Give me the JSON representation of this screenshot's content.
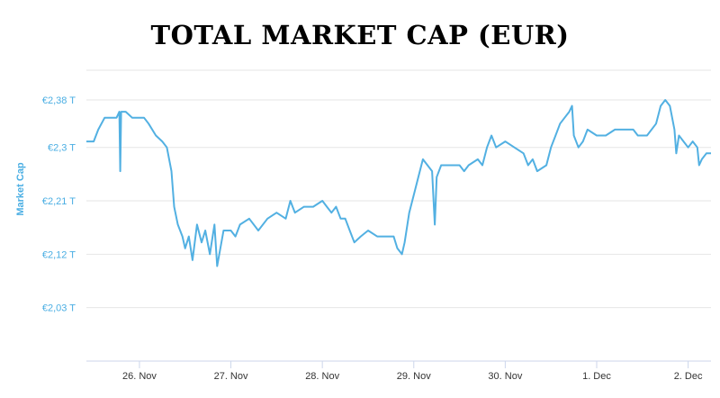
{
  "title": "TOTAL MARKET CAP (EUR)",
  "chart_data": {
    "type": "line",
    "title": "TOTAL MARKET CAP (EUR)",
    "ylabel": "Market Cap",
    "xlabel": "",
    "unit": "T EUR",
    "ylim": [
      1.94,
      2.43
    ],
    "grid": true,
    "line_color": "#52b0e2",
    "y_ticks": [
      {
        "value": 2.38,
        "label": "€2,38 T"
      },
      {
        "value": 2.3,
        "label": "€2,3 T"
      },
      {
        "value": 2.21,
        "label": "€2,21 T"
      },
      {
        "value": 2.12,
        "label": "€2,12 T"
      },
      {
        "value": 2.03,
        "label": "€2,03 T"
      }
    ],
    "x_ticks": [
      {
        "value": 26.0,
        "label": "26. Nov"
      },
      {
        "value": 27.0,
        "label": "27. Nov"
      },
      {
        "value": 28.0,
        "label": "28. Nov"
      },
      {
        "value": 29.0,
        "label": "29. Nov"
      },
      {
        "value": 30.0,
        "label": "30. Nov"
      },
      {
        "value": 31.0,
        "label": "1. Dec"
      },
      {
        "value": 32.0,
        "label": "2. Dec"
      }
    ],
    "xlim": [
      25.42,
      32.25
    ],
    "series": [
      {
        "values": [
          [
            25.42,
            2.31
          ],
          [
            25.5,
            2.31
          ],
          [
            25.55,
            2.33
          ],
          [
            25.62,
            2.35
          ],
          [
            25.7,
            2.35
          ],
          [
            25.75,
            2.35
          ],
          [
            25.78,
            2.36
          ],
          [
            25.79,
            2.26
          ],
          [
            25.8,
            2.36
          ],
          [
            25.85,
            2.36
          ],
          [
            25.92,
            2.35
          ],
          [
            25.98,
            2.35
          ],
          [
            26.05,
            2.35
          ],
          [
            26.1,
            2.34
          ],
          [
            26.18,
            2.32
          ],
          [
            26.25,
            2.31
          ],
          [
            26.3,
            2.3
          ],
          [
            26.35,
            2.26
          ],
          [
            26.38,
            2.2
          ],
          [
            26.42,
            2.17
          ],
          [
            26.47,
            2.15
          ],
          [
            26.5,
            2.13
          ],
          [
            26.54,
            2.15
          ],
          [
            26.58,
            2.11
          ],
          [
            26.63,
            2.17
          ],
          [
            26.68,
            2.14
          ],
          [
            26.72,
            2.16
          ],
          [
            26.77,
            2.12
          ],
          [
            26.82,
            2.17
          ],
          [
            26.85,
            2.1
          ],
          [
            26.92,
            2.16
          ],
          [
            27.0,
            2.16
          ],
          [
            27.05,
            2.15
          ],
          [
            27.1,
            2.17
          ],
          [
            27.2,
            2.18
          ],
          [
            27.3,
            2.16
          ],
          [
            27.4,
            2.18
          ],
          [
            27.5,
            2.19
          ],
          [
            27.6,
            2.18
          ],
          [
            27.65,
            2.21
          ],
          [
            27.7,
            2.19
          ],
          [
            27.8,
            2.2
          ],
          [
            27.9,
            2.2
          ],
          [
            28.0,
            2.21
          ],
          [
            28.05,
            2.2
          ],
          [
            28.1,
            2.19
          ],
          [
            28.15,
            2.2
          ],
          [
            28.2,
            2.18
          ],
          [
            28.25,
            2.18
          ],
          [
            28.3,
            2.16
          ],
          [
            28.35,
            2.14
          ],
          [
            28.42,
            2.15
          ],
          [
            28.5,
            2.16
          ],
          [
            28.6,
            2.15
          ],
          [
            28.7,
            2.15
          ],
          [
            28.78,
            2.15
          ],
          [
            28.82,
            2.13
          ],
          [
            28.87,
            2.12
          ],
          [
            28.9,
            2.14
          ],
          [
            28.95,
            2.19
          ],
          [
            29.0,
            2.22
          ],
          [
            29.05,
            2.25
          ],
          [
            29.1,
            2.28
          ],
          [
            29.15,
            2.27
          ],
          [
            29.2,
            2.26
          ],
          [
            29.23,
            2.17
          ],
          [
            29.25,
            2.25
          ],
          [
            29.3,
            2.27
          ],
          [
            29.4,
            2.27
          ],
          [
            29.5,
            2.27
          ],
          [
            29.55,
            2.26
          ],
          [
            29.6,
            2.27
          ],
          [
            29.7,
            2.28
          ],
          [
            29.75,
            2.27
          ],
          [
            29.8,
            2.3
          ],
          [
            29.85,
            2.32
          ],
          [
            29.9,
            2.3
          ],
          [
            30.0,
            2.31
          ],
          [
            30.1,
            2.3
          ],
          [
            30.2,
            2.29
          ],
          [
            30.25,
            2.27
          ],
          [
            30.3,
            2.28
          ],
          [
            30.35,
            2.26
          ],
          [
            30.45,
            2.27
          ],
          [
            30.5,
            2.3
          ],
          [
            30.55,
            2.32
          ],
          [
            30.6,
            2.34
          ],
          [
            30.65,
            2.35
          ],
          [
            30.7,
            2.36
          ],
          [
            30.73,
            2.37
          ],
          [
            30.75,
            2.32
          ],
          [
            30.8,
            2.3
          ],
          [
            30.85,
            2.31
          ],
          [
            30.9,
            2.33
          ],
          [
            31.0,
            2.32
          ],
          [
            31.1,
            2.32
          ],
          [
            31.2,
            2.33
          ],
          [
            31.3,
            2.33
          ],
          [
            31.4,
            2.33
          ],
          [
            31.45,
            2.32
          ],
          [
            31.55,
            2.32
          ],
          [
            31.65,
            2.34
          ],
          [
            31.7,
            2.37
          ],
          [
            31.75,
            2.38
          ],
          [
            31.8,
            2.37
          ],
          [
            31.85,
            2.33
          ],
          [
            31.87,
            2.29
          ],
          [
            31.9,
            2.32
          ],
          [
            31.95,
            2.31
          ],
          [
            32.0,
            2.3
          ],
          [
            32.05,
            2.31
          ],
          [
            32.1,
            2.3
          ],
          [
            32.12,
            2.27
          ],
          [
            32.15,
            2.28
          ],
          [
            32.2,
            2.29
          ],
          [
            32.25,
            2.29
          ]
        ]
      }
    ]
  }
}
